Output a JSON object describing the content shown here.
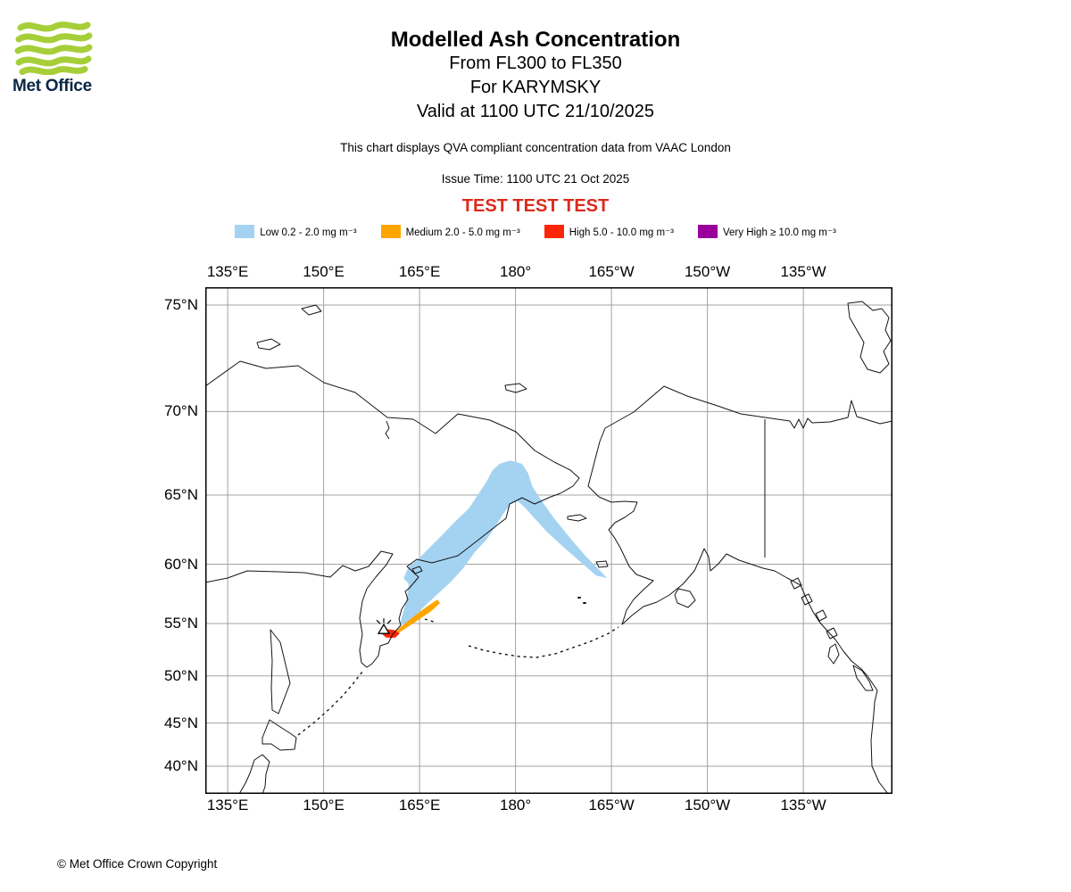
{
  "header": {
    "logo_text": "Met Office",
    "logo_green": "#a6ce39",
    "title": "Modelled Ash Concentration",
    "subtitle_flight_levels": "From FL300 to FL350",
    "subtitle_volcano": "For KARYMSKY",
    "subtitle_valid": "Valid at 1100 UTC 21/10/2025",
    "qva_note": "This chart displays QVA compliant concentration data from VAAC London",
    "issue_time": "Issue Time: 1100 UTC 21 Oct 2025",
    "test_banner": "TEST TEST TEST",
    "test_banner_color": "#dc2a1b"
  },
  "legend": {
    "items": [
      {
        "name": "Low",
        "label": "Low 0.2 - 2.0 mg m⁻³",
        "min": 0.2,
        "max": 2.0,
        "color": "#a4d3f2"
      },
      {
        "name": "Medium",
        "label": "Medium 2.0 - 5.0 mg m⁻³",
        "min": 2.0,
        "max": 5.0,
        "color": "#ffa500"
      },
      {
        "name": "High",
        "label": "High 5.0 - 10.0 mg m⁻³",
        "min": 5.0,
        "max": 10.0,
        "color": "#fb2508"
      },
      {
        "name": "Very High",
        "label": "Very High ≥ 10.0 mg m⁻³",
        "min": 10.0,
        "max": null,
        "color": "#99009c"
      }
    ]
  },
  "map": {
    "lon_ticks": [
      {
        "label": "135°E",
        "lon": 135
      },
      {
        "label": "150°E",
        "lon": 150
      },
      {
        "label": "165°E",
        "lon": 165
      },
      {
        "label": "180°",
        "lon": 180
      },
      {
        "label": "165°W",
        "lon": 195
      },
      {
        "label": "150°W",
        "lon": 210
      },
      {
        "label": "135°W",
        "lon": 225
      }
    ],
    "lat_ticks": [
      {
        "label": "75°N",
        "lat": 75
      },
      {
        "label": "70°N",
        "lat": 70
      },
      {
        "label": "65°N",
        "lat": 65
      },
      {
        "label": "60°N",
        "lat": 60
      },
      {
        "label": "55°N",
        "lat": 55
      },
      {
        "label": "50°N",
        "lat": 50
      },
      {
        "label": "45°N",
        "lat": 45
      },
      {
        "label": "40°N",
        "lat": 40
      }
    ]
  },
  "chart_data": {
    "type": "map-ash-concentration",
    "volcano": {
      "name": "KARYMSKY",
      "lat": 54.5,
      "lon": 159.4
    },
    "flight_levels": "FL300 to FL350",
    "valid_time": "1100 UTC 21/10/2025",
    "plumes": [
      {
        "level": "Low",
        "color": "#a4d3f2",
        "polygon_lonlat": [
          [
            161.9,
            54.9
          ],
          [
            162.9,
            56.9
          ],
          [
            163.3,
            58.4
          ],
          [
            162.5,
            58.9
          ],
          [
            163.3,
            59.8
          ],
          [
            165.0,
            60.5
          ],
          [
            166.4,
            61.2
          ],
          [
            168.5,
            62.2
          ],
          [
            170.6,
            63.2
          ],
          [
            172.7,
            64.1
          ],
          [
            174.1,
            65.0
          ],
          [
            175.5,
            65.9
          ],
          [
            176.4,
            66.6
          ],
          [
            177.5,
            67.0
          ],
          [
            179.2,
            67.2
          ],
          [
            181.0,
            67.0
          ],
          [
            182.0,
            66.4
          ],
          [
            182.6,
            65.6
          ],
          [
            183.8,
            64.8
          ],
          [
            185.9,
            63.5
          ],
          [
            188.7,
            61.9
          ],
          [
            191.2,
            60.5
          ],
          [
            193.2,
            59.5
          ],
          [
            194.3,
            58.9
          ],
          [
            192.6,
            59.1
          ],
          [
            190.1,
            60.2
          ],
          [
            187.3,
            61.4
          ],
          [
            184.8,
            62.5
          ],
          [
            182.8,
            63.5
          ],
          [
            181.4,
            64.2
          ],
          [
            180.3,
            64.6
          ],
          [
            179.2,
            64.4
          ],
          [
            178.2,
            63.8
          ],
          [
            176.8,
            62.8
          ],
          [
            175.5,
            61.9
          ],
          [
            173.6,
            60.9
          ],
          [
            171.7,
            59.6
          ],
          [
            169.9,
            58.6
          ],
          [
            168.1,
            57.7
          ],
          [
            166.1,
            56.7
          ],
          [
            164.3,
            55.7
          ],
          [
            162.9,
            54.9
          ]
        ]
      },
      {
        "level": "Medium",
        "color": "#ffa500",
        "polygon_lonlat": [
          [
            160.4,
            53.9
          ],
          [
            161.5,
            54.4
          ],
          [
            162.9,
            55.1
          ],
          [
            164.7,
            55.9
          ],
          [
            166.4,
            56.6
          ],
          [
            167.8,
            57.1
          ],
          [
            168.2,
            56.8
          ],
          [
            166.8,
            56.1
          ],
          [
            165.0,
            55.4
          ],
          [
            163.2,
            54.7
          ],
          [
            161.6,
            54.1
          ],
          [
            160.5,
            53.6
          ]
        ]
      },
      {
        "level": "High",
        "color": "#fb2508",
        "polygon_lonlat": [
          [
            159.0,
            54.1
          ],
          [
            159.8,
            54.5
          ],
          [
            161.1,
            54.4
          ],
          [
            161.9,
            54.1
          ],
          [
            161.2,
            53.7
          ],
          [
            159.8,
            53.7
          ]
        ]
      }
    ]
  },
  "footer": {
    "copyright": "© Met Office Crown Copyright"
  }
}
